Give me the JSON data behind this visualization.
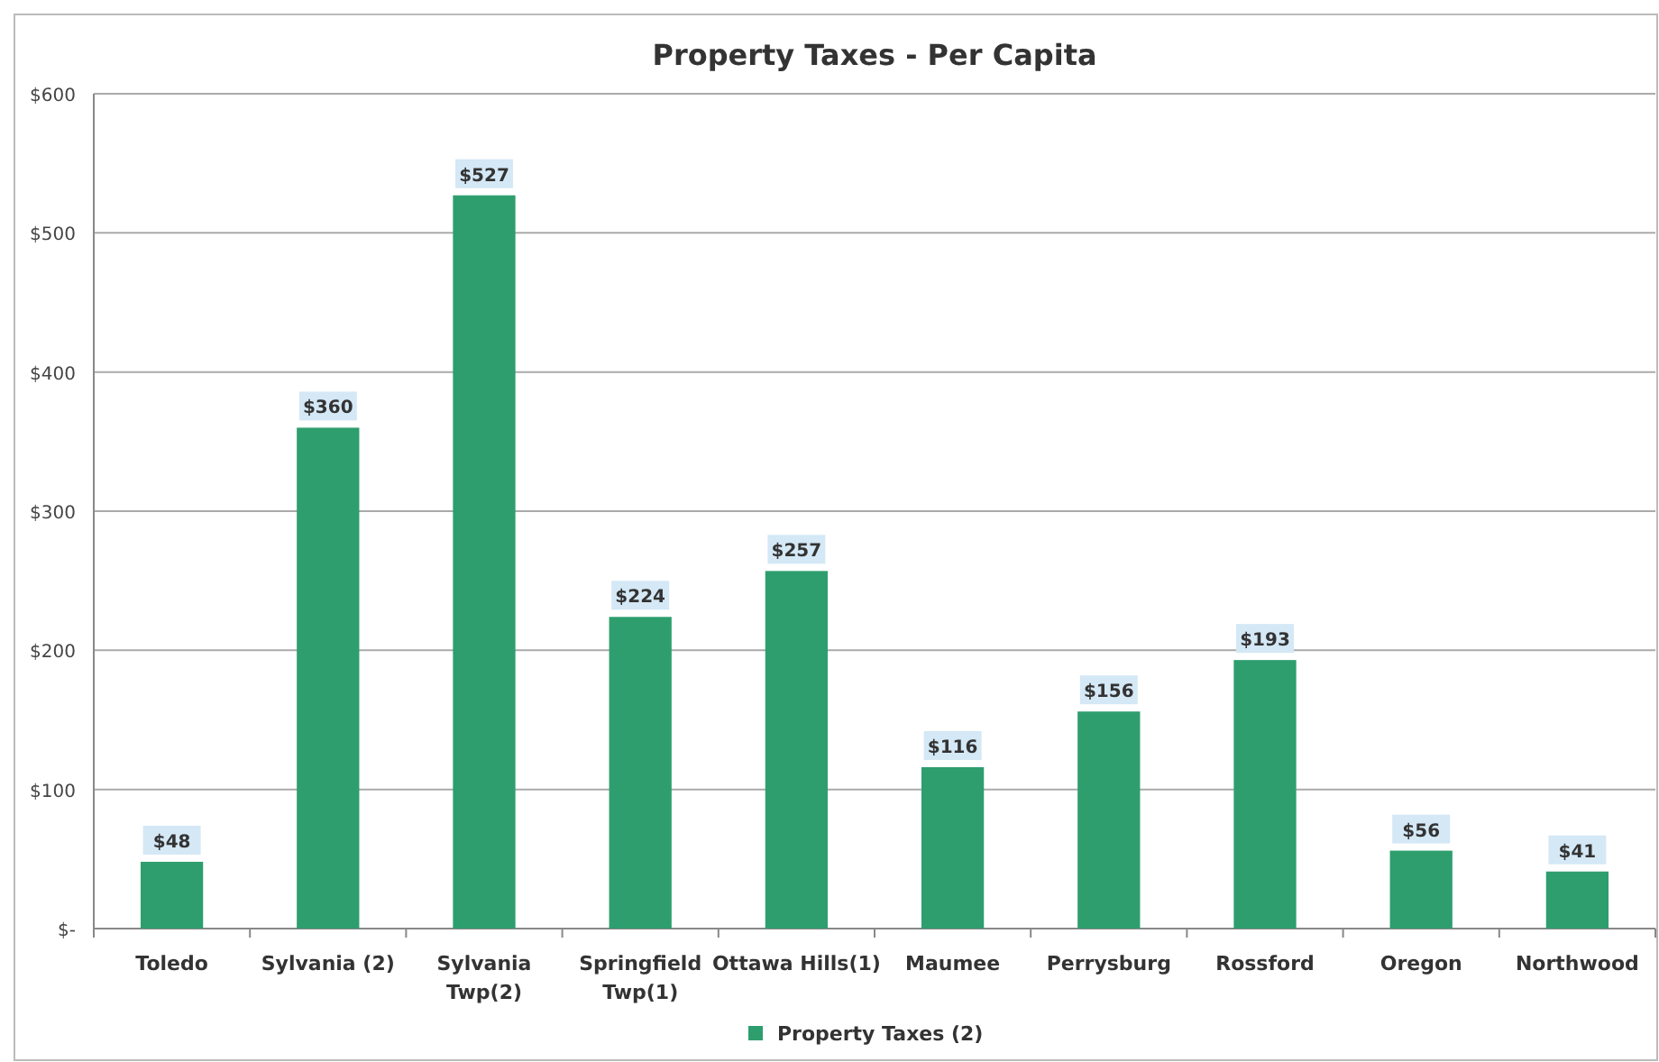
{
  "chart_data": {
    "type": "bar",
    "title": "Property Taxes - Per Capita",
    "categories": [
      "Toledo",
      "Sylvania (2)",
      "Sylvania\nTwp(2)",
      "Springfield\nTwp(1)",
      "Ottawa Hills(1)",
      "Maumee",
      "Perrysburg",
      "Rossford",
      "Oregon",
      "Northwood"
    ],
    "series": [
      {
        "name": "Property Taxes (2)",
        "color": "#2e9e6e",
        "values": [
          48,
          360,
          527,
          224,
          257,
          116,
          156,
          193,
          56,
          41
        ],
        "value_labels": [
          "$48",
          "$360",
          "$527",
          "$224",
          "$257",
          "$116",
          "$156",
          "$193",
          "$56",
          "$41"
        ]
      }
    ],
    "ylim": [
      0,
      600
    ],
    "yticks": [
      {
        "value": 0,
        "label": "$-"
      },
      {
        "value": 100,
        "label": "$100"
      },
      {
        "value": 200,
        "label": "$200"
      },
      {
        "value": 300,
        "label": "$300"
      },
      {
        "value": 400,
        "label": "$400"
      },
      {
        "value": 500,
        "label": "$500"
      },
      {
        "value": 600,
        "label": "$600"
      }
    ],
    "grid": "y",
    "legend": "bottom"
  }
}
